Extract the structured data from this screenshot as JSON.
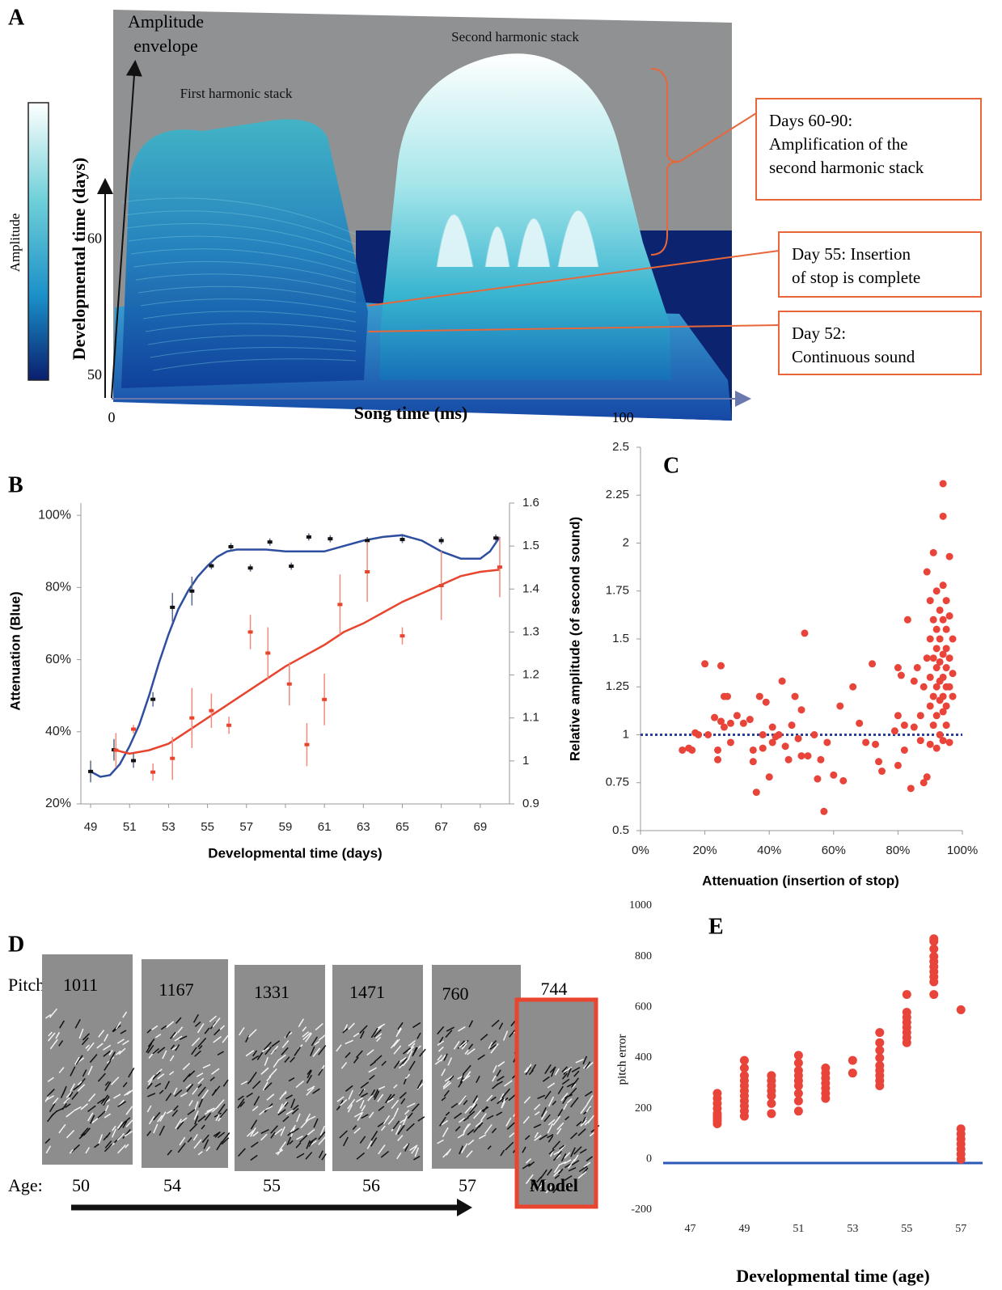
{
  "chart_data": [
    {
      "type": "surface",
      "panel_label": "A",
      "colorbar_label": "Amplitude",
      "z_label": [
        "Amplitude",
        "envelope"
      ],
      "ylabel": "Developmental time (days)",
      "xlabel": "Song time (ms)",
      "xlim": [
        0,
        124.5
      ],
      "xticks": [
        0,
        100
      ],
      "ylim": [
        48.5,
        64.4
      ],
      "yticks": [
        50,
        60
      ],
      "peak_labels": [
        "First harmonic stack",
        "Second harmonic stack"
      ],
      "annotation_color": "#e8673a",
      "annotations": [
        [
          "Days 60-90:",
          "Amplification of the",
          "second harmonic stack"
        ],
        [
          "Day 55: Insertion",
          "of stop is complete"
        ],
        [
          "Day 52:",
          "Continuous sound"
        ]
      ]
    },
    {
      "type": "line_errorbar",
      "panel_label": "B",
      "xlabel": "Developmental time (days)",
      "ylabel": "Attenuation (Blue)",
      "xlim": [
        48.5,
        70.5
      ],
      "xticks": [
        49,
        51,
        53,
        55,
        57,
        59,
        61,
        63,
        65,
        67,
        69
      ],
      "ylim": [
        20,
        103.4
      ],
      "yticks": [
        {
          "value": 20,
          "label": "20%"
        },
        {
          "value": 40,
          "label": "40%"
        },
        {
          "value": 60,
          "label": "60%"
        },
        {
          "value": 80,
          "label": "80%"
        },
        {
          "value": 100,
          "label": "100%"
        }
      ],
      "y2lim": [
        0.9,
        1.6
      ],
      "y2ticks": [
        0.9,
        1,
        1.1,
        1.2,
        1.3,
        1.4,
        1.5,
        1.6
      ],
      "series": [
        {
          "color": "#111111",
          "error_color": "#5a6a8a",
          "x": [
            49,
            50.2,
            51.2,
            52.2,
            53.2,
            54.2,
            55.2,
            56.2,
            57.2,
            58.2,
            59.3,
            60.2,
            61.3,
            63.2,
            65,
            67,
            69.8
          ],
          "values": [
            29,
            35,
            32,
            49,
            74.5,
            79,
            86,
            91.3,
            85.4,
            92.6,
            85.9,
            94,
            93.5,
            93,
            93.3,
            93,
            93.7
          ],
          "errors": [
            3,
            3,
            2,
            2,
            4,
            4,
            1,
            1,
            1,
            1,
            1,
            1,
            1,
            1,
            1,
            1,
            1
          ]
        },
        {
          "color": "#e8442e",
          "error_color": "#f08a7a",
          "axis": "y2",
          "x": [
            50.3,
            51.2,
            52.2,
            53.2,
            54.2,
            55.2,
            56.1,
            57.2,
            58.1,
            59.2,
            60.1,
            61,
            61.8,
            63.2,
            65,
            67,
            70
          ],
          "values": [
            1.025,
            1.074,
            0.974,
            1.006,
            1.1,
            1.117,
            1.083,
            1.3,
            1.251,
            1.179,
            1.038,
            1.143,
            1.364,
            1.44,
            1.291,
            1.408,
            1.451
          ],
          "errors": [
            0.04,
            0.01,
            0.02,
            0.05,
            0.07,
            0.04,
            0.02,
            0.04,
            0.06,
            0.05,
            0.05,
            0.06,
            0.07,
            0.07,
            0.02,
            0.08,
            0.07
          ]
        }
      ],
      "fits": [
        {
          "color": "#2e4fa0",
          "x": [
            49,
            49.5,
            50,
            50.5,
            51,
            51.5,
            52,
            52.5,
            53,
            53.5,
            54,
            54.5,
            55,
            55.5,
            56,
            56.5,
            57,
            58,
            59,
            60,
            61,
            62,
            63,
            64,
            65,
            66,
            67,
            68,
            69,
            69.5,
            70
          ],
          "values": [
            29,
            27.5,
            28,
            31,
            36,
            42,
            50,
            59,
            67,
            74,
            79,
            83,
            86,
            88.5,
            90,
            90.5,
            90.5,
            90.5,
            90,
            90,
            90,
            91.5,
            93,
            94,
            94.5,
            93,
            90,
            88,
            88,
            90,
            94
          ]
        },
        {
          "color": "#e8442e",
          "axis": "y2",
          "x": [
            50.3,
            51,
            52,
            53,
            54,
            55,
            56,
            57,
            58,
            59,
            60,
            61,
            62,
            63,
            64,
            65,
            66,
            67,
            68,
            69,
            70
          ],
          "values": [
            1.025,
            1.017,
            1.025,
            1.04,
            1.07,
            1.1,
            1.13,
            1.16,
            1.19,
            1.22,
            1.245,
            1.27,
            1.3,
            1.32,
            1.345,
            1.37,
            1.39,
            1.41,
            1.43,
            1.44,
            1.445
          ]
        }
      ]
    },
    {
      "type": "scatter",
      "panel_label": "C",
      "xlabel": "Attenuation (insertion of stop)",
      "ylabel": "Relative amplitude (of second sound)",
      "xlim": [
        0,
        100
      ],
      "xticks": [
        {
          "value": 0,
          "label": "0%"
        },
        {
          "value": 20,
          "label": "20%"
        },
        {
          "value": 40,
          "label": "40%"
        },
        {
          "value": 60,
          "label": "60%"
        },
        {
          "value": 80,
          "label": "80%"
        },
        {
          "value": 100,
          "label": "100%"
        }
      ],
      "ylim": [
        0.5,
        2.5
      ],
      "yticks": [
        0.5,
        0.75,
        1,
        1.25,
        1.5,
        1.75,
        2,
        2.25,
        2.5
      ],
      "color": "#e8443a",
      "reference_line": {
        "value": 1,
        "color": "#2a3e9c",
        "style": "dotted"
      },
      "x": [
        13,
        15,
        16,
        17,
        18,
        20,
        21,
        23,
        24,
        24,
        25,
        25,
        26,
        26,
        27,
        28,
        28,
        30,
        32,
        34,
        35,
        35,
        36,
        37,
        38,
        38,
        39,
        40,
        41,
        41,
        42,
        43,
        44,
        45,
        46,
        47,
        48,
        49,
        50,
        50,
        51,
        52,
        54,
        55,
        56,
        57,
        58,
        60,
        62,
        63,
        66,
        68,
        70,
        72,
        73,
        74,
        75,
        79,
        80,
        80,
        80,
        81,
        82,
        82,
        83,
        84,
        85,
        85,
        86,
        87,
        87,
        88,
        88,
        89,
        89,
        89,
        90,
        90,
        90,
        90,
        90,
        91,
        91,
        91,
        91,
        91,
        92,
        92,
        92,
        92,
        92,
        92,
        92,
        93,
        93,
        93,
        93,
        93,
        93,
        94,
        94,
        94,
        94,
        94,
        94,
        94,
        94,
        94,
        95,
        95,
        95,
        95,
        95,
        95,
        95,
        96,
        96,
        96,
        96,
        96,
        97,
        97,
        97
      ],
      "values": [
        0.92,
        0.93,
        0.92,
        1.01,
        1.0,
        1.37,
        1.0,
        1.09,
        0.92,
        0.87,
        1.07,
        1.36,
        1.04,
        1.2,
        1.2,
        0.96,
        1.06,
        1.1,
        1.06,
        1.08,
        0.92,
        0.86,
        0.7,
        1.2,
        1.0,
        0.93,
        1.17,
        0.78,
        1.04,
        0.96,
        0.99,
        1.0,
        1.28,
        0.94,
        0.87,
        1.05,
        1.2,
        0.98,
        1.13,
        0.89,
        1.53,
        0.89,
        1.0,
        0.77,
        0.87,
        0.6,
        0.96,
        0.79,
        1.15,
        0.76,
        1.25,
        1.06,
        0.96,
        1.37,
        0.95,
        0.86,
        0.81,
        1.02,
        1.1,
        1.35,
        0.84,
        1.31,
        0.92,
        1.05,
        1.6,
        0.72,
        1.28,
        1.04,
        1.35,
        1.1,
        0.97,
        1.25,
        0.75,
        1.4,
        0.78,
        1.85,
        1.7,
        1.5,
        1.3,
        1.15,
        0.95,
        1.95,
        1.6,
        1.4,
        1.2,
        1.05,
        1.75,
        1.55,
        1.45,
        1.35,
        1.25,
        1.1,
        0.93,
        1.65,
        1.5,
        1.38,
        1.28,
        1.18,
        1.0,
        2.31,
        2.14,
        1.78,
        1.6,
        1.42,
        1.3,
        1.2,
        1.12,
        0.97,
        1.7,
        1.55,
        1.45,
        1.35,
        1.25,
        1.15,
        1.05,
        1.93,
        1.62,
        1.4,
        1.25,
        0.96,
        1.5,
        1.32,
        1.2
      ]
    },
    {
      "type": "spectrogram",
      "panel_label": "D",
      "pitch_label": "Pitch:",
      "pitches": [
        1011,
        1167,
        1331,
        1471,
        760,
        744
      ],
      "age_label": "Age:",
      "categories": [
        "50",
        "54",
        "55",
        "56",
        "57",
        "Model"
      ],
      "highlight_index": 5,
      "highlight_color": "#e8442e"
    },
    {
      "type": "scatter",
      "panel_label": "E",
      "xlabel": "Developmental time (age)",
      "ylabel": "pitch error",
      "xlim": [
        46,
        57.8
      ],
      "xticks": [
        47,
        49,
        51,
        53,
        55,
        57
      ],
      "ylim": [
        -200,
        1000
      ],
      "yticks": [
        -200,
        0,
        200,
        400,
        600,
        800,
        1000
      ],
      "color": "#e8443a",
      "reference_line": {
        "value": -15,
        "color": "#2c58b8",
        "style": "solid"
      },
      "x": [
        48,
        48,
        48,
        48,
        48,
        48,
        48,
        48,
        48,
        49,
        49,
        49,
        49,
        49,
        49,
        49,
        49,
        49,
        49,
        49,
        50,
        50,
        50,
        50,
        50,
        50,
        50,
        51,
        51,
        51,
        51,
        51,
        51,
        51,
        51,
        51,
        52,
        52,
        52,
        52,
        52,
        52,
        52,
        53,
        53,
        54,
        54,
        54,
        54,
        54,
        54,
        54,
        54,
        54,
        55,
        55,
        55,
        55,
        55,
        55,
        55,
        55,
        56,
        56,
        56,
        56,
        56,
        56,
        56,
        56,
        56,
        56,
        57,
        57,
        57,
        57,
        57,
        57,
        57,
        57
      ],
      "values": [
        140,
        150,
        160,
        170,
        180,
        200,
        220,
        240,
        260,
        170,
        190,
        210,
        230,
        250,
        270,
        290,
        310,
        330,
        360,
        390,
        180,
        220,
        250,
        270,
        290,
        310,
        330,
        190,
        230,
        260,
        290,
        310,
        330,
        350,
        380,
        410,
        240,
        260,
        280,
        300,
        320,
        340,
        360,
        340,
        390,
        290,
        310,
        330,
        350,
        370,
        400,
        430,
        460,
        500,
        460,
        480,
        500,
        520,
        540,
        560,
        580,
        650,
        650,
        700,
        720,
        740,
        760,
        780,
        800,
        830,
        860,
        870,
        590,
        0,
        20,
        40,
        60,
        80,
        100,
        120
      ]
    }
  ]
}
